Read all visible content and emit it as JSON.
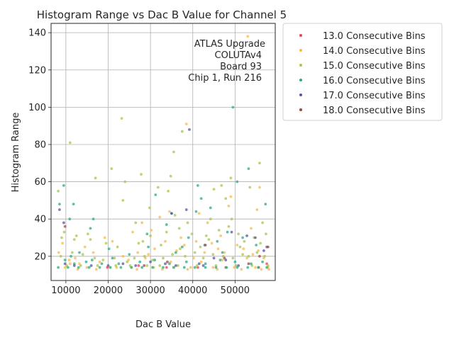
{
  "chart_data": {
    "type": "scatter",
    "title": "Histogram Range vs Dac B Value for Channel 5",
    "xlabel": "Dac B Value",
    "ylabel": "Histogram Range",
    "xlim": [
      6500,
      59500
    ],
    "ylim": [
      7,
      145
    ],
    "xticks": [
      10000,
      20000,
      30000,
      40000,
      50000
    ],
    "xtick_labels": [
      "10000",
      "20000",
      "30000",
      "40000",
      "50000"
    ],
    "yticks": [
      20,
      40,
      60,
      80,
      100,
      120,
      140
    ],
    "ytick_labels": [
      "20",
      "40",
      "60",
      "80",
      "100",
      "120",
      "140"
    ],
    "grid": true,
    "annotation": [
      "ATLAS Upgrade",
      "COLUTAv4",
      "Board 93",
      "Chip 1, Run 216"
    ],
    "legend_position": "outside-right",
    "series": [
      {
        "name": "13.0 Consecutive Bins",
        "color": "#e8474a",
        "points": [
          [
            57500,
            16
          ],
          [
            55600,
            14
          ],
          [
            47800,
            14
          ],
          [
            41200,
            14
          ],
          [
            33800,
            14
          ],
          [
            27200,
            15
          ],
          [
            19800,
            14
          ]
        ]
      },
      {
        "name": "14.0 Consecutive Bins",
        "color": "#f7b94d",
        "points": [
          [
            53000,
            138
          ],
          [
            38500,
            91
          ],
          [
            28000,
            38
          ],
          [
            32200,
            41
          ],
          [
            41500,
            43
          ],
          [
            48500,
            47
          ],
          [
            49000,
            52
          ],
          [
            55800,
            57
          ],
          [
            34500,
            44
          ],
          [
            25800,
            33
          ],
          [
            19200,
            30
          ],
          [
            14500,
            25
          ],
          [
            10800,
            18
          ],
          [
            9200,
            27
          ],
          [
            8300,
            22
          ],
          [
            12200,
            19
          ],
          [
            16500,
            22
          ],
          [
            21000,
            28
          ],
          [
            23500,
            20
          ],
          [
            27000,
            22
          ],
          [
            29500,
            21
          ],
          [
            31000,
            24
          ],
          [
            33500,
            28
          ],
          [
            36200,
            23
          ],
          [
            38000,
            26
          ],
          [
            40200,
            19
          ],
          [
            42800,
            22
          ],
          [
            44500,
            27
          ],
          [
            46000,
            24
          ],
          [
            47500,
            22
          ],
          [
            50500,
            26
          ],
          [
            52000,
            24
          ],
          [
            54200,
            21
          ],
          [
            55500,
            23
          ],
          [
            56800,
            19
          ],
          [
            57800,
            14
          ],
          [
            53800,
            35
          ],
          [
            43500,
            38
          ],
          [
            37200,
            30
          ],
          [
            30200,
            34
          ],
          [
            24800,
            18
          ],
          [
            18000,
            17
          ],
          [
            13200,
            16
          ],
          [
            11000,
            16
          ],
          [
            9800,
            14
          ],
          [
            15000,
            14
          ],
          [
            20500,
            14
          ],
          [
            25500,
            14
          ],
          [
            30800,
            14
          ],
          [
            35500,
            14
          ],
          [
            39500,
            14
          ],
          [
            44800,
            14
          ],
          [
            49800,
            14
          ],
          [
            54800,
            14
          ],
          [
            58000,
            13
          ],
          [
            22000,
            14
          ],
          [
            26800,
            13
          ],
          [
            32800,
            13
          ],
          [
            38800,
            13
          ],
          [
            45800,
            13
          ],
          [
            51500,
            13
          ],
          [
            56200,
            13
          ],
          [
            17200,
            13
          ],
          [
            12800,
            13
          ],
          [
            28800,
            19
          ],
          [
            34800,
            17
          ],
          [
            42000,
            17
          ],
          [
            47000,
            18
          ],
          [
            52800,
            19
          ],
          [
            40800,
            28
          ],
          [
            46600,
            31
          ],
          [
            55200,
            45
          ]
        ]
      },
      {
        "name": "15.0 Consecutive Bins",
        "color": "#a9c64a",
        "points": [
          [
            23200,
            94
          ],
          [
            11000,
            81
          ],
          [
            37500,
            87
          ],
          [
            35500,
            76
          ],
          [
            55800,
            70
          ],
          [
            20800,
            67
          ],
          [
            27800,
            64
          ],
          [
            34800,
            63
          ],
          [
            17000,
            62
          ],
          [
            49000,
            62
          ],
          [
            24000,
            60
          ],
          [
            45000,
            56
          ],
          [
            53500,
            57
          ],
          [
            8200,
            55
          ],
          [
            34200,
            55
          ],
          [
            31800,
            57
          ],
          [
            23500,
            50
          ],
          [
            47800,
            51
          ],
          [
            29800,
            46
          ],
          [
            26500,
            38
          ],
          [
            35800,
            42
          ],
          [
            44200,
            40
          ],
          [
            50800,
            32
          ],
          [
            56500,
            38
          ],
          [
            9600,
            33
          ],
          [
            12500,
            31
          ],
          [
            15800,
            29
          ],
          [
            19500,
            27
          ],
          [
            22200,
            25
          ],
          [
            28200,
            28
          ],
          [
            32500,
            26
          ],
          [
            37000,
            24
          ],
          [
            39800,
            32
          ],
          [
            43800,
            29
          ],
          [
            46200,
            34
          ],
          [
            48500,
            36
          ],
          [
            52200,
            28
          ],
          [
            54500,
            30
          ],
          [
            57300,
            32
          ],
          [
            8800,
            20
          ],
          [
            11500,
            22
          ],
          [
            14000,
            21
          ],
          [
            16800,
            19
          ],
          [
            18800,
            18
          ],
          [
            21500,
            19
          ],
          [
            24500,
            17
          ],
          [
            26200,
            19
          ],
          [
            28600,
            20
          ],
          [
            30500,
            18
          ],
          [
            33000,
            19
          ],
          [
            35200,
            21
          ],
          [
            38200,
            20
          ],
          [
            40500,
            22
          ],
          [
            42500,
            19
          ],
          [
            44800,
            21
          ],
          [
            47200,
            20
          ],
          [
            49500,
            19
          ],
          [
            51800,
            21
          ],
          [
            53200,
            20
          ],
          [
            55200,
            22
          ],
          [
            57000,
            20
          ],
          [
            10200,
            15
          ],
          [
            13500,
            15
          ],
          [
            17500,
            15
          ],
          [
            21800,
            15
          ],
          [
            25200,
            15
          ],
          [
            29200,
            15
          ],
          [
            32200,
            15
          ],
          [
            36500,
            15
          ],
          [
            41000,
            15
          ],
          [
            45500,
            15
          ],
          [
            50200,
            15
          ],
          [
            54000,
            15
          ],
          [
            57800,
            15
          ],
          [
            9000,
            30
          ],
          [
            12000,
            29
          ],
          [
            15200,
            32
          ],
          [
            27200,
            27
          ],
          [
            36800,
            35
          ],
          [
            41800,
            25
          ],
          [
            43200,
            31
          ],
          [
            49200,
            40
          ],
          [
            51200,
            25
          ],
          [
            56000,
            27
          ],
          [
            30000,
            31
          ],
          [
            33800,
            33
          ],
          [
            38800,
            38
          ],
          [
            46800,
            58
          ]
        ]
      },
      {
        "name": "16.0 Consecutive Bins",
        "color": "#2eab83",
        "points": [
          [
            49500,
            100
          ],
          [
            53200,
            67
          ],
          [
            50500,
            60
          ],
          [
            41200,
            58
          ],
          [
            9500,
            58
          ],
          [
            42000,
            51
          ],
          [
            31200,
            53
          ],
          [
            57200,
            48
          ],
          [
            8500,
            48
          ],
          [
            11800,
            48
          ],
          [
            44200,
            46
          ],
          [
            35000,
            43
          ],
          [
            40800,
            44
          ],
          [
            10900,
            40
          ],
          [
            16500,
            40
          ],
          [
            15800,
            35
          ],
          [
            29200,
            32
          ],
          [
            33800,
            37
          ],
          [
            45800,
            28
          ],
          [
            48200,
            33
          ],
          [
            51800,
            30
          ],
          [
            55000,
            26
          ],
          [
            37500,
            25
          ],
          [
            25000,
            21
          ],
          [
            20200,
            24
          ],
          [
            13200,
            22
          ],
          [
            9800,
            18
          ],
          [
            12000,
            16
          ],
          [
            14800,
            17
          ],
          [
            18500,
            16
          ],
          [
            22500,
            16
          ],
          [
            27500,
            17
          ],
          [
            31000,
            18
          ],
          [
            34500,
            16
          ],
          [
            38500,
            17
          ],
          [
            43000,
            16
          ],
          [
            46500,
            18
          ],
          [
            50000,
            17
          ],
          [
            53800,
            16
          ],
          [
            56500,
            17
          ],
          [
            8200,
            14
          ],
          [
            10500,
            14
          ],
          [
            13000,
            14
          ],
          [
            15500,
            14
          ],
          [
            18000,
            14
          ],
          [
            20500,
            14
          ],
          [
            23000,
            14
          ],
          [
            25500,
            14
          ],
          [
            28000,
            14
          ],
          [
            30500,
            14
          ],
          [
            33000,
            14
          ],
          [
            35500,
            14
          ],
          [
            38000,
            14
          ],
          [
            40500,
            14
          ],
          [
            43000,
            14
          ],
          [
            45500,
            14
          ],
          [
            48000,
            14
          ],
          [
            50500,
            14
          ],
          [
            53000,
            14
          ],
          [
            55500,
            14
          ],
          [
            57500,
            14
          ],
          [
            39000,
            30
          ],
          [
            42800,
            26
          ],
          [
            47000,
            22
          ],
          [
            29500,
            25
          ],
          [
            36000,
            22
          ],
          [
            21000,
            19
          ],
          [
            16200,
            18
          ],
          [
            11200,
            20
          ]
        ]
      },
      {
        "name": "17.0 Consecutive Bins",
        "color": "#5a54a4",
        "points": [
          [
            39200,
            88
          ],
          [
            38500,
            45
          ],
          [
            35000,
            43
          ],
          [
            8500,
            45
          ],
          [
            9500,
            38
          ],
          [
            49200,
            33
          ],
          [
            52800,
            31
          ],
          [
            54800,
            30
          ],
          [
            56800,
            23
          ],
          [
            57500,
            25
          ],
          [
            41500,
            16
          ],
          [
            23500,
            16
          ],
          [
            9800,
            16
          ],
          [
            45000,
            19
          ],
          [
            47800,
            18
          ],
          [
            30000,
            17
          ],
          [
            33500,
            16
          ],
          [
            12000,
            15
          ],
          [
            16000,
            15
          ],
          [
            20000,
            15
          ],
          [
            26500,
            15
          ],
          [
            36000,
            15
          ],
          [
            42500,
            15
          ],
          [
            50800,
            15
          ]
        ]
      },
      {
        "name": "18.0 Consecutive Bins",
        "color": "#9b4a4a",
        "points": [
          [
            57800,
            25
          ],
          [
            47500,
            19
          ],
          [
            53200,
            16
          ],
          [
            34000,
            17
          ],
          [
            43000,
            26
          ],
          [
            9800,
            36
          ],
          [
            55800,
            20
          ],
          [
            28500,
            15
          ]
        ]
      }
    ]
  }
}
